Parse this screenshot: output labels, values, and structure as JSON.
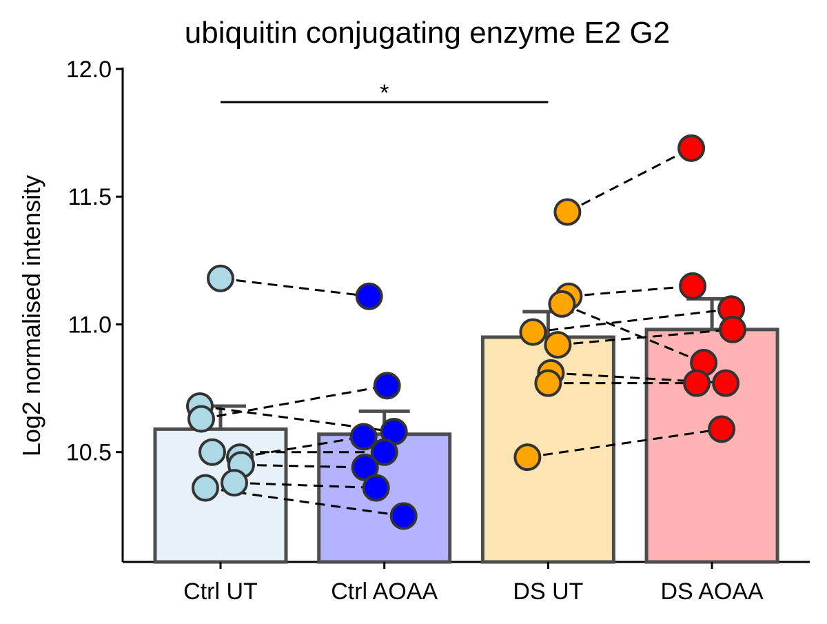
{
  "chart_data": {
    "type": "bar",
    "title": "ubiquitin conjugating enzyme E2 G2",
    "y_label": "Log2 normalised intensity",
    "categories": [
      "Ctrl UT",
      "Ctrl AOAA",
      "DS UT",
      "DS AOAA"
    ],
    "values": [
      10.59,
      10.57,
      10.95,
      10.98
    ],
    "error_tops": [
      10.68,
      10.66,
      11.05,
      11.1
    ],
    "bar_colors": [
      "#e6f2f8",
      "#b3b3ff",
      "#fde5b3",
      "#ffb3b3"
    ],
    "point_colors": [
      "#add8e6",
      "#0000ff",
      "#ffa500",
      "#ff0000"
    ],
    "points": [
      [
        11.18,
        10.68,
        10.63,
        10.5,
        10.48,
        10.45,
        10.38,
        10.36
      ],
      [
        11.11,
        10.58,
        10.76,
        10.5,
        10.56,
        10.44,
        10.36,
        10.25
      ],
      [
        11.44,
        11.11,
        11.08,
        10.97,
        10.92,
        10.81,
        10.77,
        10.48
      ],
      [
        11.69,
        11.15,
        10.85,
        11.06,
        10.98,
        10.77,
        10.77,
        10.59
      ]
    ],
    "pairs": [
      [
        0,
        1
      ],
      [
        2,
        3
      ]
    ],
    "significance": {
      "between": [
        0,
        2
      ],
      "y": 11.87,
      "label": "*"
    },
    "ylim": [
      10.07,
      12.0
    ],
    "yticks": [
      10.5,
      {
        "value": 11.0,
        "label": "11.0"
      },
      11.5,
      {
        "value": 12.0,
        "label": "12.0"
      }
    ]
  }
}
